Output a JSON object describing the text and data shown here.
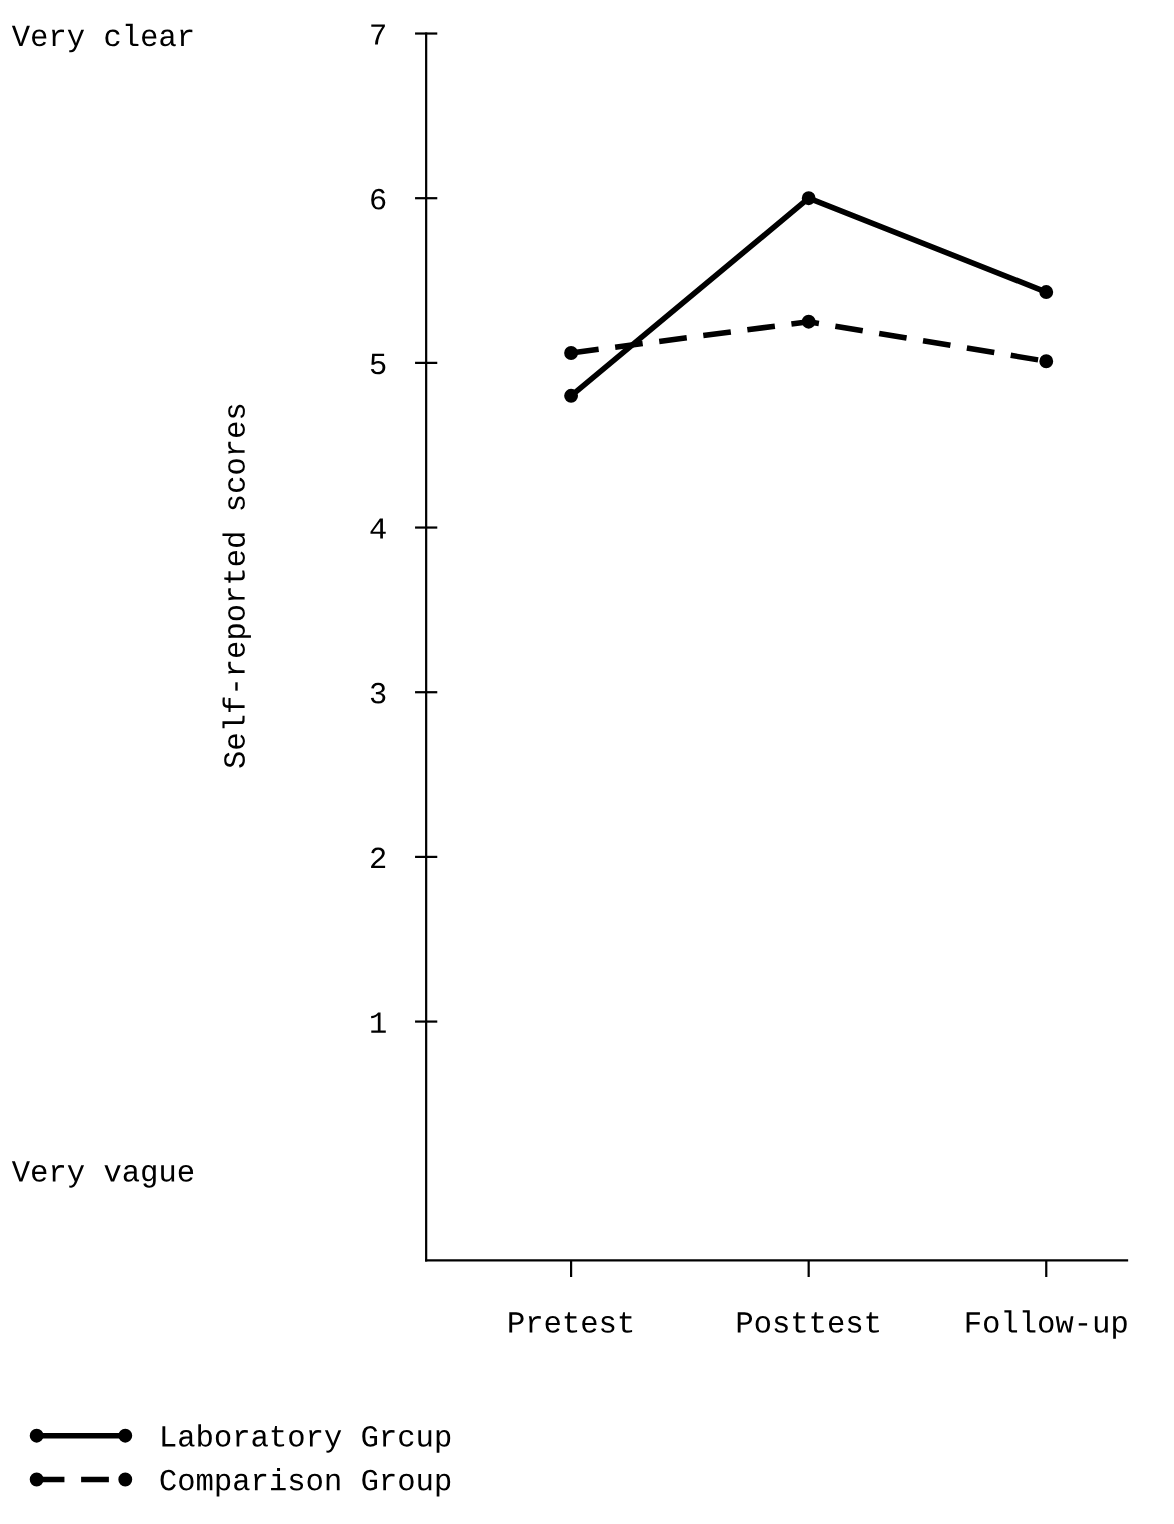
{
  "chart_data": {
    "type": "line",
    "ylabel": "Self-reported scores",
    "categories": [
      "Pretest",
      "Posttest",
      "Follow-up"
    ],
    "series": [
      {
        "name": "Laboratory Grcup",
        "color": "#000000",
        "values": [
          4.8,
          6.0,
          5.43
        ],
        "line_style": "solid"
      },
      {
        "name": "Comparison Group",
        "color": "#000000",
        "values": [
          5.06,
          5.25,
          5.01
        ],
        "line_style": "dashed"
      }
    ],
    "ylim": [
      -0.45,
      7
    ],
    "yticks": [
      1,
      2,
      3,
      4,
      5,
      6,
      7
    ],
    "annotations": [
      "Very clear",
      "Very vague"
    ],
    "marker": "circle",
    "grid": false,
    "legend": "bottom left"
  }
}
